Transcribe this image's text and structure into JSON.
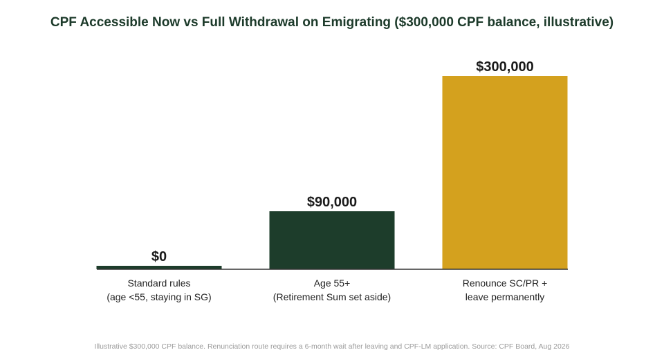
{
  "chart_data": {
    "type": "bar",
    "title": "CPF Accessible Now vs Full Withdrawal on Emigrating ($300,000 CPF balance, illustrative)",
    "categories": [
      [
        "Standard rules",
        "(age <55, staying in SG)"
      ],
      [
        "Age 55+",
        "(Retirement Sum set aside)"
      ],
      [
        "Renounce SC/PR +",
        "leave permanently"
      ]
    ],
    "values": [
      0,
      90000,
      300000
    ],
    "value_labels": [
      "$0",
      "$90,000",
      "$300,000"
    ],
    "colors": [
      "#1d3d2b",
      "#1d3d2b",
      "#d4a11e"
    ],
    "ylim": [
      0,
      300000
    ],
    "grid": false,
    "legend": "none"
  },
  "footnote": "Illustrative $300,000 CPF balance. Renunciation route requires a 6-month wait after leaving and CPF-LM application. Source: CPF Board, Aug 2026"
}
